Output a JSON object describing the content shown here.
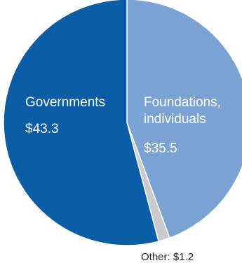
{
  "chart_data": {
    "type": "pie",
    "title": "",
    "slices": [
      {
        "label": "Foundations, individuals",
        "label_lines": [
          "Foundations,",
          "individuals"
        ],
        "value": 35.5,
        "value_label": "$35.5",
        "color": "#7aa3d3"
      },
      {
        "label": "Other",
        "value": 1.2,
        "value_label": "Other: $1.2",
        "color": "#c8cacd"
      },
      {
        "label": "Governments",
        "label_lines": [
          "Governments"
        ],
        "value": 43.3,
        "value_label": "$43.3",
        "color": "#0b5da6"
      }
    ]
  }
}
